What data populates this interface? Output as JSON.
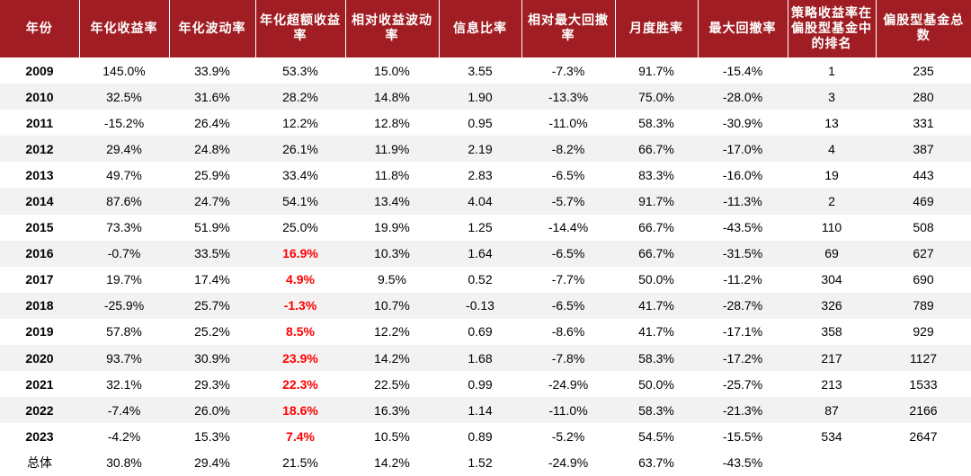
{
  "table": {
    "headers": [
      "年份",
      "年化收益率",
      "年化波动率",
      "年化超额收益率",
      "相对收益波动率",
      "信息比率",
      "相对最大回撤率",
      "月度胜率",
      "最大回撤率",
      "策略收益率在偏股型基金中的排名",
      "偏股型基金总数"
    ],
    "rows": [
      [
        "2009",
        "145.0%",
        "33.9%",
        "53.3%",
        "15.0%",
        "3.55",
        "-7.3%",
        "91.7%",
        "-15.4%",
        "1",
        "235"
      ],
      [
        "2010",
        "32.5%",
        "31.6%",
        "28.2%",
        "14.8%",
        "1.90",
        "-13.3%",
        "75.0%",
        "-28.0%",
        "3",
        "280"
      ],
      [
        "2011",
        "-15.2%",
        "26.4%",
        "12.2%",
        "12.8%",
        "0.95",
        "-11.0%",
        "58.3%",
        "-30.9%",
        "13",
        "331"
      ],
      [
        "2012",
        "29.4%",
        "24.8%",
        "26.1%",
        "11.9%",
        "2.19",
        "-8.2%",
        "66.7%",
        "-17.0%",
        "4",
        "387"
      ],
      [
        "2013",
        "49.7%",
        "25.9%",
        "33.4%",
        "11.8%",
        "2.83",
        "-6.5%",
        "83.3%",
        "-16.0%",
        "19",
        "443"
      ],
      [
        "2014",
        "87.6%",
        "24.7%",
        "54.1%",
        "13.4%",
        "4.04",
        "-5.7%",
        "91.7%",
        "-11.3%",
        "2",
        "469"
      ],
      [
        "2015",
        "73.3%",
        "51.9%",
        "25.0%",
        "19.9%",
        "1.25",
        "-14.4%",
        "66.7%",
        "-43.5%",
        "110",
        "508"
      ],
      [
        "2016",
        "-0.7%",
        "33.5%",
        "16.9%",
        "10.3%",
        "1.64",
        "-6.5%",
        "66.7%",
        "-31.5%",
        "69",
        "627"
      ],
      [
        "2017",
        "19.7%",
        "17.4%",
        "4.9%",
        "9.5%",
        "0.52",
        "-7.7%",
        "50.0%",
        "-11.2%",
        "304",
        "690"
      ],
      [
        "2018",
        "-25.9%",
        "25.7%",
        "-1.3%",
        "10.7%",
        "-0.13",
        "-6.5%",
        "41.7%",
        "-28.7%",
        "326",
        "789"
      ],
      [
        "2019",
        "57.8%",
        "25.2%",
        "8.5%",
        "12.2%",
        "0.69",
        "-8.6%",
        "41.7%",
        "-17.1%",
        "358",
        "929"
      ],
      [
        "2020",
        "93.7%",
        "30.9%",
        "23.9%",
        "14.2%",
        "1.68",
        "-7.8%",
        "58.3%",
        "-17.2%",
        "217",
        "1127"
      ],
      [
        "2021",
        "32.1%",
        "29.3%",
        "22.3%",
        "22.5%",
        "0.99",
        "-24.9%",
        "50.0%",
        "-25.7%",
        "213",
        "1533"
      ],
      [
        "2022",
        "-7.4%",
        "26.0%",
        "18.6%",
        "16.3%",
        "1.14",
        "-11.0%",
        "58.3%",
        "-21.3%",
        "87",
        "2166"
      ],
      [
        "2023",
        "-4.2%",
        "15.3%",
        "7.4%",
        "10.5%",
        "0.89",
        "-5.2%",
        "54.5%",
        "-15.5%",
        "534",
        "2647"
      ],
      [
        "总体",
        "30.8%",
        "29.4%",
        "21.5%",
        "14.2%",
        "1.52",
        "-24.9%",
        "63.7%",
        "-43.5%",
        "",
        ""
      ]
    ],
    "highlight_rows_from": 7,
    "highlight_rows_to": 14,
    "highlight_col": 3,
    "colors": {
      "header_bg": "#a01e23",
      "header_text": "#ffffff",
      "highlight_text": "#ff0000",
      "stripe": "#f2f2f2"
    }
  }
}
